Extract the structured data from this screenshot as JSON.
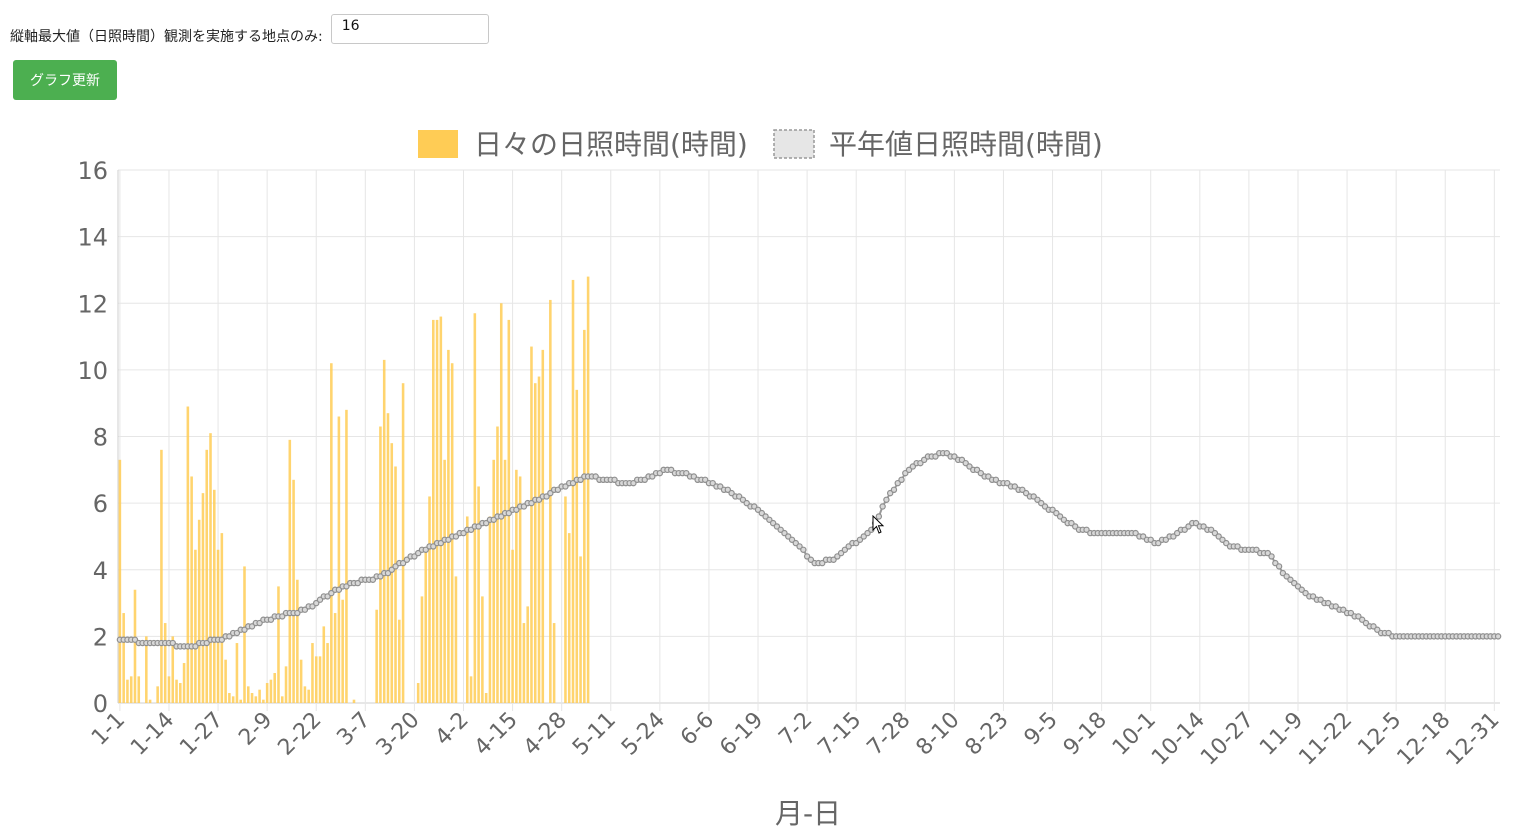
{
  "controls": {
    "ymax_label": "縦軸最大値（日照時間）観測を実施する地点のみ:",
    "ymax_value": "16",
    "update_button": "グラフ更新"
  },
  "chart_data": {
    "type": "bar",
    "title": "",
    "xlabel": "月-日",
    "ylabel": "",
    "ylim": [
      0,
      16
    ],
    "yticks": [
      0,
      2,
      4,
      6,
      8,
      10,
      12,
      14,
      16
    ],
    "grid": true,
    "legend_position": "top",
    "xticks": [
      "1-1",
      "1-14",
      "1-27",
      "2-9",
      "2-22",
      "3-7",
      "3-20",
      "4-2",
      "4-15",
      "4-28",
      "5-11",
      "5-24",
      "6-6",
      "6-19",
      "7-2",
      "7-15",
      "7-28",
      "8-10",
      "8-23",
      "9-5",
      "9-18",
      "10-1",
      "10-14",
      "10-27",
      "11-9",
      "11-22",
      "12-5",
      "12-18",
      "12-31"
    ],
    "series": [
      {
        "name": "日々の日照時間(時間)",
        "type": "bar",
        "color": "#ffcc55",
        "x_start_day": 1,
        "values": [
          7.3,
          2.7,
          0.7,
          0.8,
          3.4,
          0.8,
          0,
          2.0,
          0.1,
          0,
          0.5,
          7.6,
          2.4,
          0.8,
          2.0,
          0.7,
          0.6,
          1.2,
          8.9,
          6.8,
          4.6,
          5.5,
          6.3,
          7.6,
          8.1,
          6.4,
          4.6,
          5.1,
          1.3,
          0.3,
          0.2,
          1.8,
          0.1,
          4.1,
          0.5,
          0.3,
          0.2,
          0.4,
          0.1,
          0.6,
          0.7,
          0.9,
          3.5,
          0.2,
          1.1,
          7.9,
          6.7,
          3.7,
          1.3,
          0.5,
          0.4,
          1.8,
          1.4,
          1.4,
          2.3,
          1.8,
          10.2,
          2.7,
          8.6,
          3.1,
          8.8,
          0,
          0.1,
          0,
          0,
          0,
          0,
          0,
          2.8,
          8.3,
          10.3,
          8.7,
          7.8,
          7.1,
          2.5,
          9.6,
          0,
          0,
          0,
          0.6,
          3.2,
          4.6,
          6.2,
          11.5,
          11.5,
          11.6,
          7.3,
          10.6,
          10.2,
          3.8,
          0,
          0,
          5.6,
          0.8,
          11.7,
          6.5,
          3.2,
          0.3,
          5.6,
          7.3,
          8.3,
          12.0,
          7.3,
          11.5,
          4.6,
          7.0,
          6.8,
          2.4,
          2.9,
          10.7,
          9.6,
          9.8,
          10.6,
          0,
          12.1,
          2.4,
          0,
          0,
          6.2,
          5.1,
          12.7,
          9.4,
          4.4,
          11.2,
          12.8
        ]
      },
      {
        "name": "平年値日照時間(時間)",
        "type": "line",
        "color": "#999999",
        "knots": [
          [
            1,
            1.9
          ],
          [
            10,
            1.8
          ],
          [
            20,
            1.7
          ],
          [
            30,
            2.0
          ],
          [
            40,
            2.5
          ],
          [
            50,
            2.8
          ],
          [
            60,
            3.5
          ],
          [
            70,
            3.8
          ],
          [
            80,
            4.5
          ],
          [
            90,
            5.0
          ],
          [
            100,
            5.5
          ],
          [
            110,
            6.0
          ],
          [
            120,
            6.6
          ],
          [
            125,
            6.8
          ],
          [
            130,
            6.7
          ],
          [
            135,
            6.6
          ],
          [
            140,
            6.7
          ],
          [
            145,
            7.0
          ],
          [
            150,
            6.9
          ],
          [
            160,
            6.5
          ],
          [
            170,
            5.8
          ],
          [
            180,
            4.8
          ],
          [
            185,
            4.2
          ],
          [
            190,
            4.3
          ],
          [
            200,
            5.2
          ],
          [
            205,
            6.3
          ],
          [
            210,
            7.0
          ],
          [
            215,
            7.4
          ],
          [
            220,
            7.5
          ],
          [
            225,
            7.2
          ],
          [
            230,
            6.8
          ],
          [
            240,
            6.4
          ],
          [
            250,
            5.6
          ],
          [
            255,
            5.2
          ],
          [
            260,
            5.1
          ],
          [
            270,
            5.1
          ],
          [
            275,
            4.8
          ],
          [
            280,
            5.0
          ],
          [
            285,
            5.4
          ],
          [
            290,
            5.2
          ],
          [
            295,
            4.7
          ],
          [
            300,
            4.6
          ],
          [
            305,
            4.5
          ],
          [
            310,
            3.8
          ],
          [
            315,
            3.3
          ],
          [
            320,
            3.0
          ],
          [
            330,
            2.5
          ],
          [
            335,
            2.1
          ],
          [
            340,
            2.0
          ],
          [
            366,
            2.0
          ]
        ]
      }
    ]
  }
}
